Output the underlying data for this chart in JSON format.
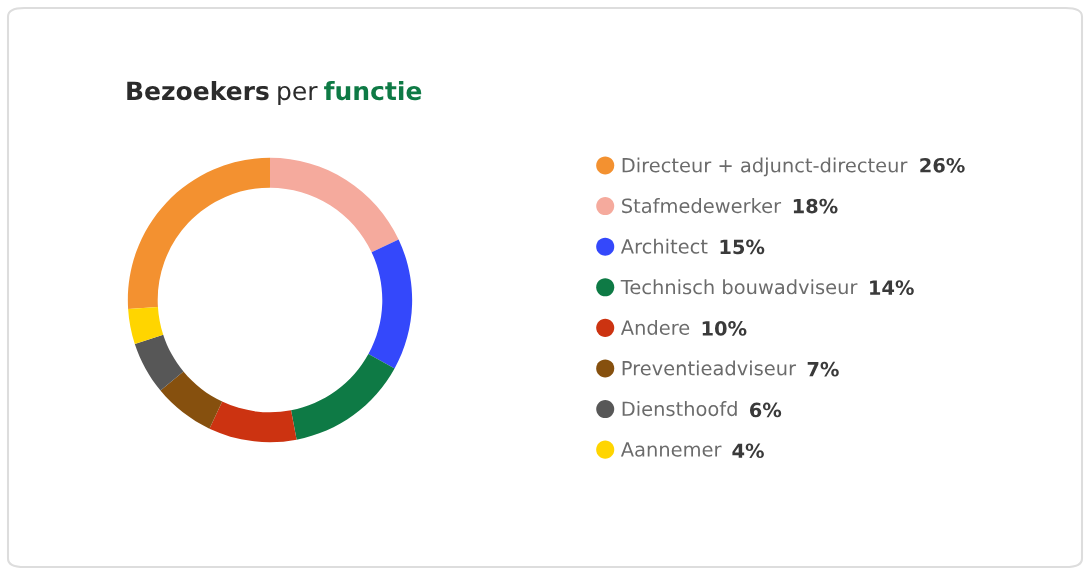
{
  "chart_data": {
    "type": "donut",
    "title": "Bezoekers per functie",
    "categories": [
      "Directeur + adjunct-directeur",
      "Stafmedewerker",
      "Architect",
      "Technisch bouwadviseur",
      "Andere",
      "Preventieadviseur",
      "Diensthoofd",
      "Aannemer"
    ],
    "values": [
      26,
      18,
      15,
      14,
      10,
      7,
      6,
      4
    ],
    "colors": [
      "#f39130",
      "#f5aa9d",
      "#3448fb",
      "#0e7a45",
      "#cc3311",
      "#86500e",
      "#575757",
      "#ffd500"
    ],
    "value_labels": [
      "26%",
      "18%",
      "15%",
      "14%",
      "10%",
      "7%",
      "6%",
      "4%"
    ],
    "legend": "right"
  }
}
